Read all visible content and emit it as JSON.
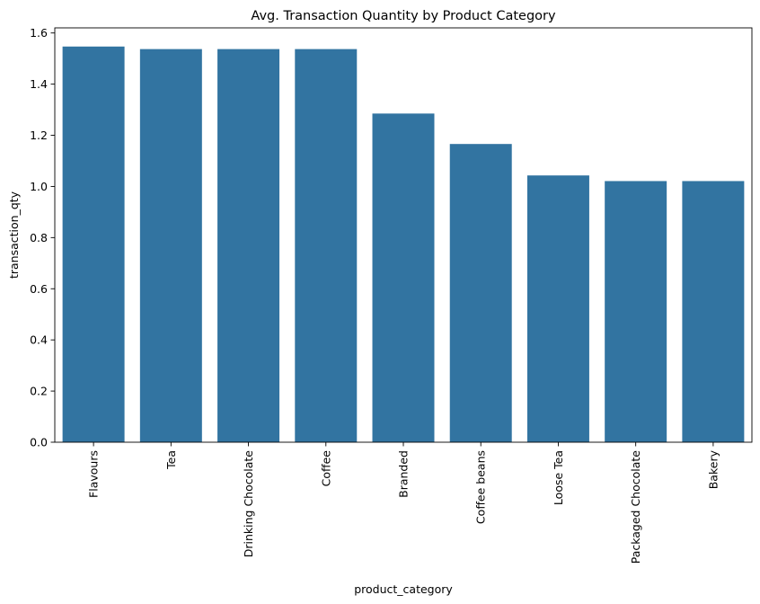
{
  "chart_data": {
    "type": "bar",
    "title": "Avg. Transaction Quantity by Product Category",
    "xlabel": "product_category",
    "ylabel": "transaction_qty",
    "categories": [
      "Flavours",
      "Tea",
      "Drinking Chocolate",
      "Coffee",
      "Branded",
      "Coffee beans",
      "Loose Tea",
      "Packaged Chocolate",
      "Bakery"
    ],
    "values": [
      1.547,
      1.537,
      1.537,
      1.537,
      1.285,
      1.166,
      1.043,
      1.021,
      1.021
    ],
    "ylim": [
      0,
      1.62
    ],
    "yticks": [
      0.0,
      0.2,
      0.4,
      0.6,
      0.8,
      1.0,
      1.2,
      1.4,
      1.6
    ],
    "ytick_labels": [
      "0.0",
      "0.2",
      "0.4",
      "0.6",
      "0.8",
      "1.0",
      "1.2",
      "1.4",
      "1.6"
    ],
    "bar_color": "#3274a1",
    "grid": false,
    "legend": "none"
  }
}
